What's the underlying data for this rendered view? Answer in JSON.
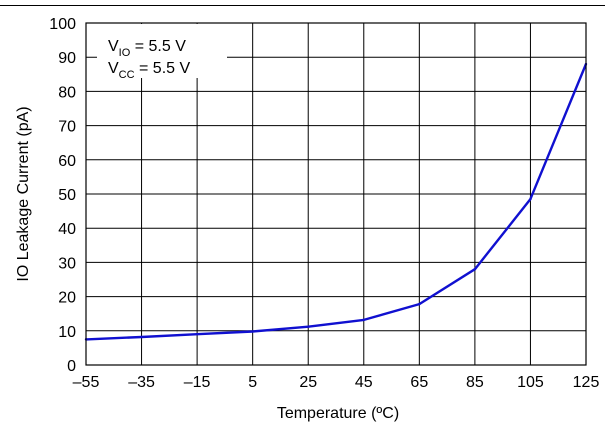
{
  "chart_data": {
    "type": "line",
    "xlabel": "Temperature (ºC)",
    "ylabel": "IO Leakage Current (pA)",
    "xlim": [
      -55,
      125
    ],
    "ylim": [
      0,
      100
    ],
    "x_ticks": [
      -55,
      -35,
      -15,
      5,
      25,
      45,
      65,
      85,
      105,
      125
    ],
    "x_tick_labels": [
      "–55",
      "–35",
      "–15",
      "5",
      "25",
      "45",
      "65",
      "85",
      "105",
      "125"
    ],
    "y_ticks": [
      0,
      10,
      20,
      30,
      40,
      50,
      60,
      70,
      80,
      90,
      100
    ],
    "y_tick_labels": [
      "0",
      "10",
      "20",
      "30",
      "40",
      "50",
      "60",
      "70",
      "80",
      "90",
      "100"
    ],
    "grid": true,
    "series": [
      {
        "color": "#1010d0",
        "x": [
          -55,
          -35,
          -15,
          5,
          25,
          45,
          65,
          85,
          105,
          125
        ],
        "y": [
          7.5,
          8.2,
          9.0,
          9.8,
          11.2,
          13.2,
          17.8,
          28.0,
          48.5,
          88.0
        ]
      }
    ],
    "annotation": {
      "line1": {
        "main": "V",
        "sub": "IO",
        "rest": " = 5.5 V"
      },
      "line2": {
        "main": "V",
        "sub": "CC",
        "rest": " = 5.5 V"
      }
    }
  }
}
